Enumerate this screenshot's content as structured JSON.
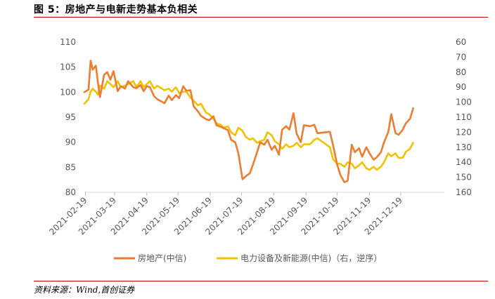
{
  "title": "图  5：房地产与电新走势基本负相关",
  "source": "资料来源：Wind,首创证券",
  "colors": {
    "orange": "#ED7D31",
    "gold": "#F2C200",
    "accent": "#c00000"
  },
  "chart_data": {
    "type": "line",
    "x_ticks": [
      "2021-02-19",
      "2021-03-19",
      "2021-04-19",
      "2021-05-19",
      "2021-06-19",
      "2021-07-19",
      "2021-08-19",
      "2021-09-19",
      "2021-10-19",
      "2021-11-19",
      "2021-12-19"
    ],
    "y_left": {
      "min": 80,
      "max": 110,
      "ticks": [
        80,
        85,
        90,
        95,
        100,
        105,
        110
      ]
    },
    "y_right": {
      "min": 60,
      "max": 160,
      "reversed": true,
      "ticks": [
        60,
        70,
        80,
        90,
        100,
        110,
        120,
        130,
        140,
        150,
        160
      ]
    },
    "legend_position": "bottom",
    "series": [
      {
        "name": "房地产(中信)",
        "axis": "left",
        "color": "#ED7D31",
        "x": [
          "2021-02-18",
          "2021-02-22",
          "2021-02-24",
          "2021-02-26",
          "2021-03-01",
          "2021-03-03",
          "2021-03-05",
          "2021-03-09",
          "2021-03-12",
          "2021-03-15",
          "2021-03-18",
          "2021-03-22",
          "2021-03-25",
          "2021-03-29",
          "2021-04-01",
          "2021-04-06",
          "2021-04-09",
          "2021-04-13",
          "2021-04-16",
          "2021-04-19",
          "2021-04-22",
          "2021-04-26",
          "2021-04-29",
          "2021-05-06",
          "2021-05-10",
          "2021-05-13",
          "2021-05-17",
          "2021-05-20",
          "2021-05-24",
          "2021-05-27",
          "2021-05-31",
          "2021-06-03",
          "2021-06-07",
          "2021-06-10",
          "2021-06-15",
          "2021-06-18",
          "2021-06-22",
          "2021-06-25",
          "2021-06-29",
          "2021-07-02",
          "2021-07-06",
          "2021-07-09",
          "2021-07-13",
          "2021-07-16",
          "2021-07-20",
          "2021-07-23",
          "2021-07-27",
          "2021-07-30",
          "2021-08-03",
          "2021-08-06",
          "2021-08-10",
          "2021-08-13",
          "2021-08-17",
          "2021-08-20",
          "2021-08-24",
          "2021-08-27",
          "2021-08-31",
          "2021-09-03",
          "2021-09-07",
          "2021-09-10",
          "2021-09-14",
          "2021-09-17",
          "2021-09-23",
          "2021-09-27",
          "2021-09-30",
          "2021-10-12",
          "2021-10-15",
          "2021-10-19",
          "2021-10-22",
          "2021-10-26",
          "2021-10-29",
          "2021-11-02",
          "2021-11-05",
          "2021-11-09",
          "2021-11-12",
          "2021-11-16",
          "2021-11-19",
          "2021-11-23",
          "2021-11-26",
          "2021-11-30",
          "2021-12-03",
          "2021-12-07",
          "2021-12-10",
          "2021-12-14",
          "2021-12-17",
          "2021-12-21",
          "2021-12-24",
          "2021-12-28",
          "2021-12-31"
        ],
        "y": [
          100,
          100.5,
          106.3,
          104.5,
          105.3,
          102,
          99,
          103.5,
          104,
          102.5,
          104.2,
          100.2,
          101.2,
          100.7,
          102.2,
          101,
          100.8,
          101.4,
          100.2,
          101.2,
          101,
          99.2,
          98.6,
          97.8,
          99.3,
          98.4,
          99.4,
          98.8,
          101.2,
          100.3,
          100.4,
          97.2,
          96.2,
          95.3,
          94.6,
          94.4,
          95.2,
          93.4,
          93.1,
          92.8,
          92.4,
          90.5,
          90,
          87.8,
          82.6,
          83.2,
          83.8,
          85.5,
          88,
          90,
          89.5,
          90.5,
          88.5,
          89.3,
          87.5,
          92.5,
          93.2,
          92.5,
          95.8,
          91.7,
          90,
          93.4,
          93.2,
          93.5,
          91.8,
          92.1,
          89.4,
          85.5,
          83.5,
          82,
          82.3,
          89.5,
          88,
          88.8,
          87.1,
          89,
          87.8,
          86.5,
          87,
          88,
          90,
          92,
          95.6,
          91.8,
          91.5,
          92.5,
          93.8,
          94.7,
          96.8
        ]
      },
      {
        "name": "电力设备及新能源(中信)（右，逆序）",
        "axis": "right",
        "color": "#F2C200",
        "x": [
          "2021-02-18",
          "2021-02-22",
          "2021-02-24",
          "2021-02-26",
          "2021-03-01",
          "2021-03-03",
          "2021-03-05",
          "2021-03-09",
          "2021-03-12",
          "2021-03-15",
          "2021-03-18",
          "2021-03-22",
          "2021-03-25",
          "2021-03-29",
          "2021-04-01",
          "2021-04-06",
          "2021-04-09",
          "2021-04-13",
          "2021-04-16",
          "2021-04-19",
          "2021-04-22",
          "2021-04-26",
          "2021-04-29",
          "2021-05-06",
          "2021-05-10",
          "2021-05-13",
          "2021-05-17",
          "2021-05-20",
          "2021-05-24",
          "2021-05-27",
          "2021-05-31",
          "2021-06-03",
          "2021-06-07",
          "2021-06-10",
          "2021-06-15",
          "2021-06-18",
          "2021-06-22",
          "2021-06-25",
          "2021-06-29",
          "2021-07-02",
          "2021-07-06",
          "2021-07-09",
          "2021-07-13",
          "2021-07-16",
          "2021-07-20",
          "2021-07-23",
          "2021-07-27",
          "2021-07-30",
          "2021-08-03",
          "2021-08-06",
          "2021-08-10",
          "2021-08-13",
          "2021-08-17",
          "2021-08-20",
          "2021-08-24",
          "2021-08-27",
          "2021-08-31",
          "2021-09-03",
          "2021-09-07",
          "2021-09-10",
          "2021-09-14",
          "2021-09-17",
          "2021-09-23",
          "2021-09-27",
          "2021-09-30",
          "2021-10-12",
          "2021-10-15",
          "2021-10-19",
          "2021-10-22",
          "2021-10-26",
          "2021-10-29",
          "2021-11-02",
          "2021-11-05",
          "2021-11-09",
          "2021-11-12",
          "2021-11-16",
          "2021-11-19",
          "2021-11-23",
          "2021-11-26",
          "2021-11-30",
          "2021-12-03",
          "2021-12-07",
          "2021-12-10",
          "2021-12-14",
          "2021-12-17",
          "2021-12-21",
          "2021-12-24",
          "2021-12-28",
          "2021-12-31"
        ],
        "y": [
          101,
          98,
          93,
          91,
          93,
          95,
          89,
          91,
          86,
          88,
          90,
          86,
          90,
          89,
          88,
          86,
          90,
          86,
          90,
          88,
          86,
          91,
          89,
          92,
          91,
          93,
          90,
          94,
          93,
          93,
          97,
          99,
          102,
          101,
          107,
          108,
          111,
          114,
          115,
          117,
          116,
          120,
          122,
          117,
          119,
          123,
          125,
          124,
          127,
          126,
          125,
          120,
          122,
          126,
          128,
          131,
          128,
          130,
          129,
          127,
          130,
          128,
          128,
          125,
          124,
          130,
          138,
          141,
          141,
          143,
          140,
          141,
          144,
          142,
          140,
          144,
          145,
          143,
          145,
          143,
          140,
          134,
          136,
          134,
          137,
          137,
          133,
          131,
          127
        ]
      }
    ]
  }
}
